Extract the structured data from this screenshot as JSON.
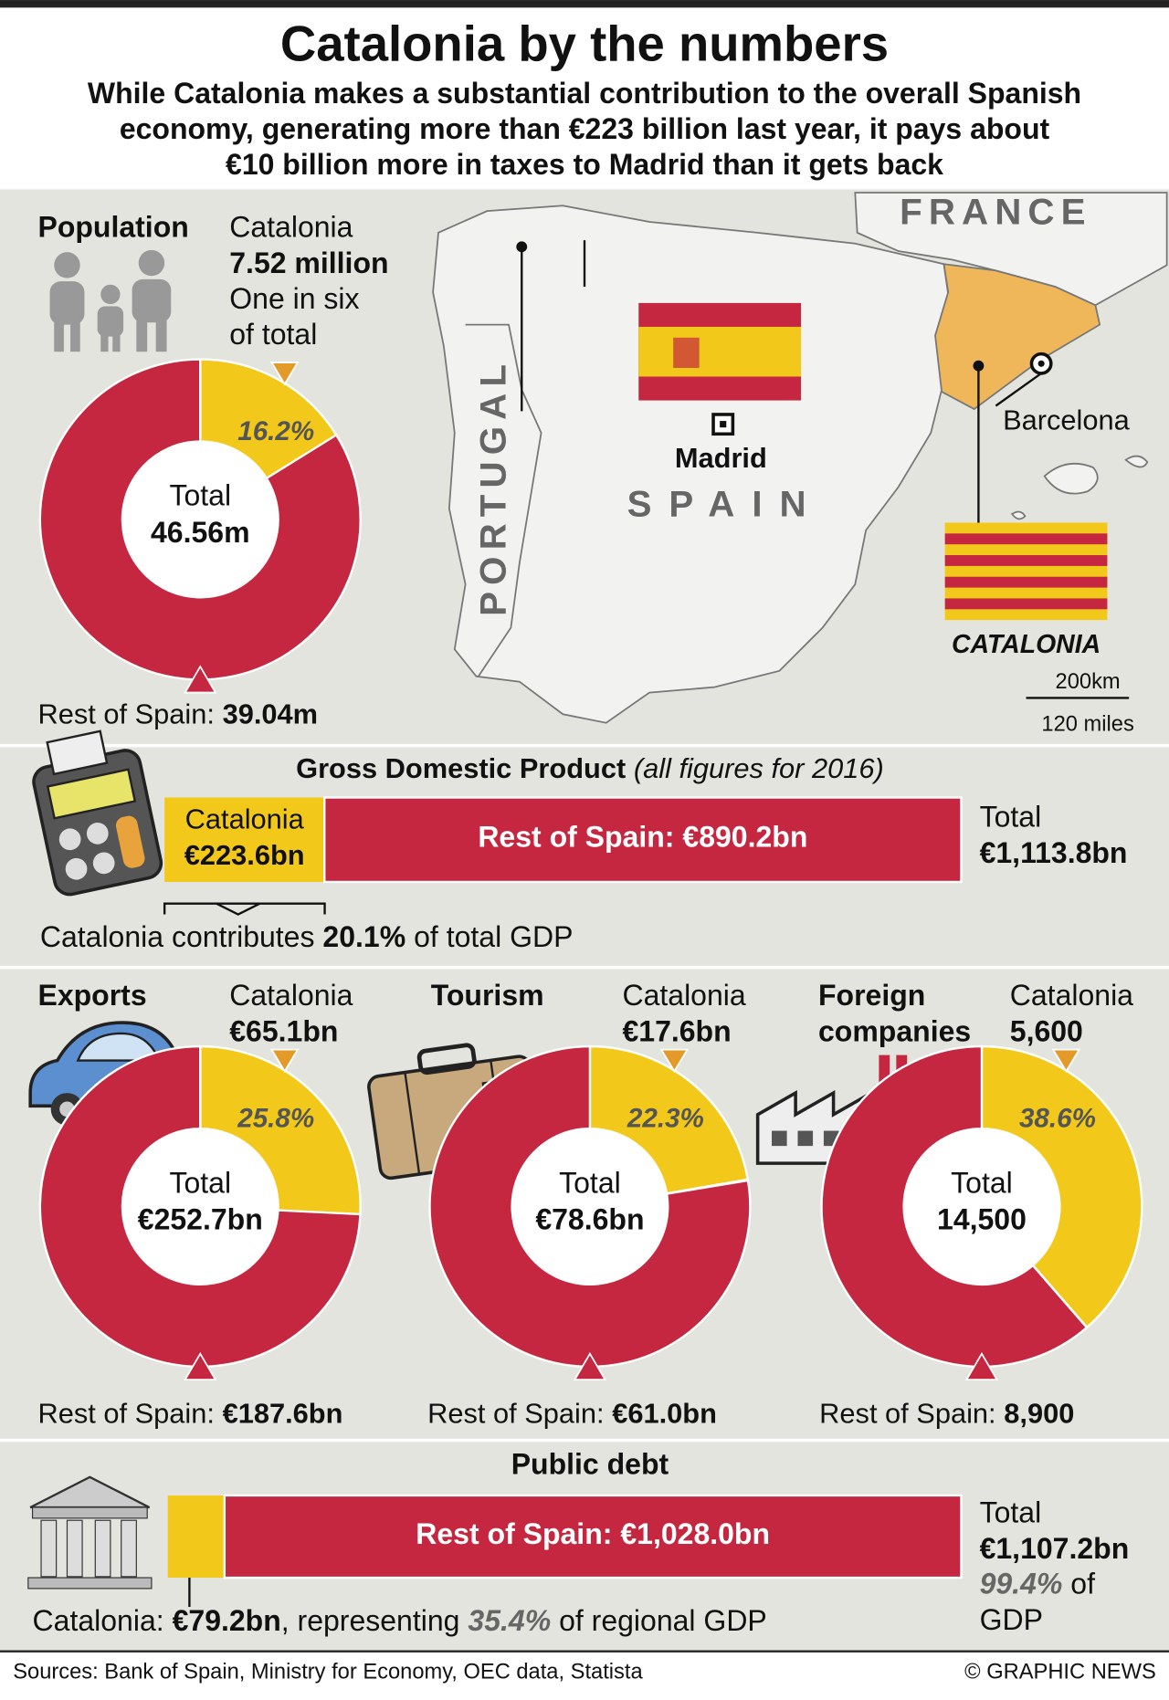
{
  "colors": {
    "catalonia": "#f2c91a",
    "rest": "#c4273f",
    "region": "#efb75a",
    "marker": "#e39a28"
  },
  "header": {
    "title": "Catalonia by the numbers",
    "subtitle_lines": [
      "While Catalonia makes a substantial contribution to the overall Spanish",
      "economy, generating more than €223 billion last year, it pays about",
      "€10 billion more in taxes to Madrid than it gets back"
    ]
  },
  "population": {
    "title_lines": [
      "Population"
    ],
    "catalonia_label": "Catalonia",
    "catalonia": {
      "value": 7.52,
      "label": "7.52 million"
    },
    "note_lines": [
      "One in six",
      "of total"
    ],
    "share": {
      "value": 16.2,
      "label": "16.2%"
    },
    "total_label": "Total",
    "total": {
      "value": 46.56,
      "label": "46.56m"
    },
    "rest_label": "Rest of Spain:",
    "rest": {
      "value": 39.04,
      "label": "39.04m"
    }
  },
  "map": {
    "france": "FRANCE",
    "portugal": "PORTUGAL",
    "spain": "SPAIN",
    "madrid": "Madrid",
    "barcelona": "Barcelona",
    "region": "CATALONIA",
    "scale_km": "200km",
    "scale_miles": "120 miles"
  },
  "gdp": {
    "title": "Gross Domestic Product",
    "period": "(all figures for 2016)",
    "catalonia_label": "Catalonia",
    "catalonia": {
      "value": 223.6,
      "label": "€223.6bn"
    },
    "rest_label": "Rest of Spain:",
    "rest": {
      "value": 890.2,
      "label": "€890.2bn"
    },
    "total_label": "Total",
    "total": {
      "value": 1113.8,
      "label": "€1,113.8bn"
    },
    "note_before": "Catalonia contributes",
    "share": {
      "value": 20.1,
      "label": "20.1%"
    },
    "note_after": "of total GDP"
  },
  "exports": {
    "title_lines": [
      "Exports"
    ],
    "catalonia_label": "Catalonia",
    "catalonia": {
      "value": 65.1,
      "label": "€65.1bn"
    },
    "share": {
      "value": 25.8,
      "label": "25.8%"
    },
    "total_label": "Total",
    "total": {
      "value": 252.7,
      "label": "€252.7bn"
    },
    "rest_label": "Rest of Spain:",
    "rest": {
      "value": 187.6,
      "label": "€187.6bn"
    }
  },
  "tourism": {
    "title_lines": [
      "Tourism"
    ],
    "catalonia_label": "Catalonia",
    "catalonia": {
      "value": 17.6,
      "label": "€17.6bn"
    },
    "share": {
      "value": 22.3,
      "label": "22.3%"
    },
    "total_label": "Total",
    "total": {
      "value": 78.6,
      "label": "€78.6bn"
    },
    "rest_label": "Rest of Spain:",
    "rest": {
      "value": 61.0,
      "label": "€61.0bn"
    }
  },
  "foreign": {
    "title_lines": [
      "Foreign",
      "companies"
    ],
    "catalonia_label": "Catalonia",
    "catalonia": {
      "value": 5600,
      "label": "5,600"
    },
    "share": {
      "value": 38.6,
      "label": "38.6%"
    },
    "total_label": "Total",
    "total": {
      "value": 14500,
      "label": "14,500"
    },
    "rest_label": "Rest of Spain:",
    "rest": {
      "value": 8900,
      "label": "8,900"
    }
  },
  "debt": {
    "title": "Public debt",
    "catalonia_label": "Catalonia:",
    "catalonia": {
      "value": 79.2,
      "label": "€79.2bn"
    },
    "note_mid": ", representing",
    "regional_share": {
      "value": 35.4,
      "label": "35.4%"
    },
    "note_after": "of regional GDP",
    "rest_label": "Rest of Spain:",
    "rest": {
      "value": 1028.0,
      "label": "€1,028.0bn"
    },
    "total_label": "Total",
    "total": {
      "value": 1107.2,
      "label": "€1,107.2bn"
    },
    "gdp_share": {
      "value": 99.4,
      "label": "99.4%"
    },
    "gdp_after_lines": [
      "of",
      "GDP"
    ]
  },
  "footer": {
    "sources": "Sources: Bank of Spain, Ministry for Economy, OEC data, Statista",
    "credit": "© GRAPHIC NEWS"
  }
}
